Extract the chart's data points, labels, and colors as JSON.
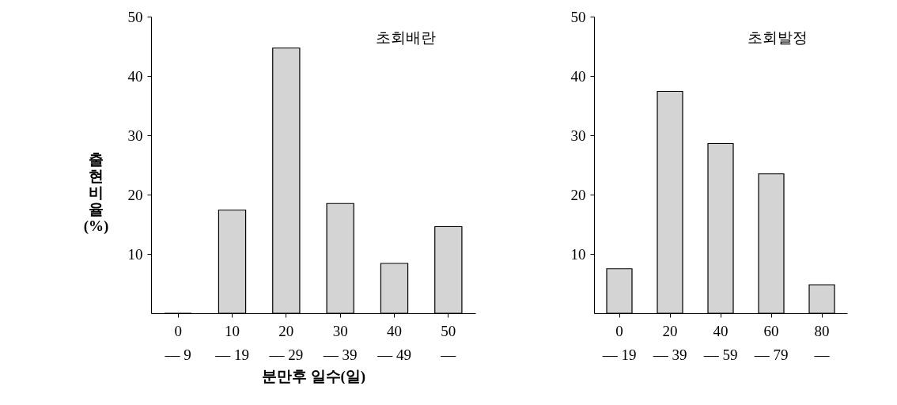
{
  "chart_data": [
    {
      "type": "bar",
      "title": "초회배란",
      "xlabel": "분만후 일수(일)",
      "ylabel": "출현비율(%)",
      "categories": [
        "0\n— 9",
        "10\n— 19",
        "20\n— 29",
        "30\n— 39",
        "40\n— 49",
        "50\n—"
      ],
      "values": [
        0,
        17.4,
        44.7,
        18.5,
        8.4,
        14.6
      ],
      "color": "#d4d4d4",
      "ylim": [
        0,
        50
      ],
      "yticks": [
        10,
        20,
        30,
        40,
        50
      ],
      "grid": false
    },
    {
      "type": "bar",
      "title": "초회발정",
      "categories": [
        "0\n— 19",
        "20\n— 39",
        "40\n— 59",
        "60\n— 79",
        "80\n—"
      ],
      "values": [
        7.5,
        37.4,
        28.6,
        23.5,
        4.8
      ],
      "color": "#d4d4d4",
      "ylim": [
        0,
        50
      ],
      "yticks": [
        10,
        20,
        30,
        40,
        50
      ],
      "grid": false
    }
  ]
}
